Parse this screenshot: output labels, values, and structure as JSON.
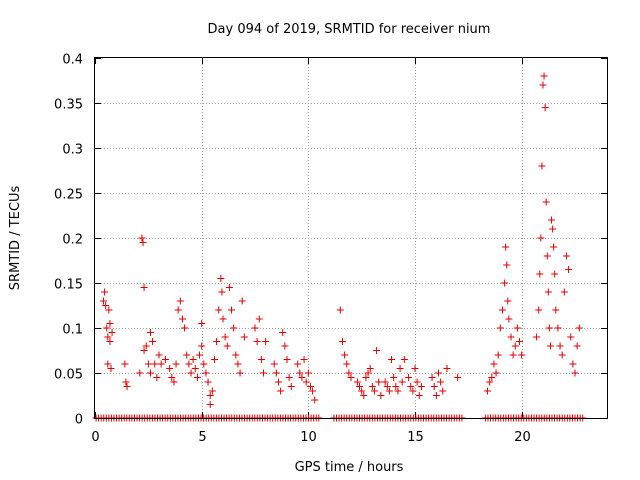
{
  "chart_data": {
    "type": "scatter",
    "title": "Day 094 of 2019, SRMTID for receiver nium",
    "xlabel": "GPS time / hours",
    "ylabel": "SRMTID / TECUs",
    "xlim": [
      0,
      24
    ],
    "ylim": [
      0,
      0.4
    ],
    "xticks": [
      0,
      5,
      10,
      15,
      20
    ],
    "xtick_labels": [
      "0",
      "5",
      "10",
      "15",
      "20"
    ],
    "yticks": [
      0,
      0.05,
      0.1,
      0.15,
      0.2,
      0.25,
      0.3,
      0.35,
      0.4
    ],
    "ytick_labels": [
      "0",
      "0.05",
      "0.1",
      "0.15",
      "0.2",
      "0.25",
      "0.3",
      "0.35",
      "0.4"
    ],
    "grid": true,
    "marker": "+",
    "color": "#e00000",
    "series": [
      {
        "name": "SRMTID",
        "points": [
          [
            0.4,
            0.13
          ],
          [
            0.45,
            0.14
          ],
          [
            0.5,
            0.125
          ],
          [
            0.55,
            0.1
          ],
          [
            0.6,
            0.09
          ],
          [
            0.6,
            0.06
          ],
          [
            0.65,
            0.12
          ],
          [
            0.7,
            0.105
          ],
          [
            0.7,
            0.085
          ],
          [
            0.75,
            0.055
          ],
          [
            0.8,
            0.095
          ],
          [
            1.4,
            0.06
          ],
          [
            1.45,
            0.04
          ],
          [
            1.5,
            0.035
          ],
          [
            2.1,
            0.05
          ],
          [
            2.2,
            0.2
          ],
          [
            2.25,
            0.195
          ],
          [
            2.3,
            0.145
          ],
          [
            2.3,
            0.075
          ],
          [
            2.4,
            0.08
          ],
          [
            2.5,
            0.06
          ],
          [
            2.6,
            0.095
          ],
          [
            2.7,
            0.085
          ],
          [
            2.8,
            0.06
          ],
          [
            2.6,
            0.05
          ],
          [
            2.9,
            0.045
          ],
          [
            3.0,
            0.07
          ],
          [
            3.1,
            0.06
          ],
          [
            3.3,
            0.065
          ],
          [
            3.5,
            0.055
          ],
          [
            3.6,
            0.045
          ],
          [
            3.7,
            0.04
          ],
          [
            3.8,
            0.06
          ],
          [
            3.9,
            0.12
          ],
          [
            4.0,
            0.13
          ],
          [
            4.1,
            0.11
          ],
          [
            4.2,
            0.1
          ],
          [
            4.3,
            0.07
          ],
          [
            4.4,
            0.06
          ],
          [
            4.5,
            0.05
          ],
          [
            4.6,
            0.065
          ],
          [
            4.7,
            0.055
          ],
          [
            4.8,
            0.045
          ],
          [
            4.9,
            0.07
          ],
          [
            5.0,
            0.08
          ],
          [
            5.0,
            0.105
          ],
          [
            5.1,
            0.06
          ],
          [
            5.2,
            0.05
          ],
          [
            5.3,
            0.04
          ],
          [
            5.4,
            0.015
          ],
          [
            5.4,
            0.025
          ],
          [
            5.5,
            0.03
          ],
          [
            5.6,
            0.065
          ],
          [
            5.7,
            0.085
          ],
          [
            5.8,
            0.12
          ],
          [
            5.9,
            0.155
          ],
          [
            5.95,
            0.14
          ],
          [
            6.0,
            0.11
          ],
          [
            6.1,
            0.09
          ],
          [
            6.2,
            0.08
          ],
          [
            6.3,
            0.145
          ],
          [
            6.4,
            0.12
          ],
          [
            6.5,
            0.1
          ],
          [
            6.6,
            0.07
          ],
          [
            6.7,
            0.06
          ],
          [
            6.8,
            0.05
          ],
          [
            6.9,
            0.13
          ],
          [
            7.0,
            0.09
          ],
          [
            7.5,
            0.1
          ],
          [
            7.6,
            0.085
          ],
          [
            7.7,
            0.11
          ],
          [
            7.8,
            0.065
          ],
          [
            7.9,
            0.05
          ],
          [
            8.0,
            0.085
          ],
          [
            8.4,
            0.06
          ],
          [
            8.5,
            0.05
          ],
          [
            8.6,
            0.04
          ],
          [
            8.7,
            0.03
          ],
          [
            8.8,
            0.095
          ],
          [
            8.9,
            0.08
          ],
          [
            9.0,
            0.065
          ],
          [
            9.1,
            0.045
          ],
          [
            9.2,
            0.035
          ],
          [
            9.5,
            0.06
          ],
          [
            9.6,
            0.05
          ],
          [
            9.7,
            0.045
          ],
          [
            9.8,
            0.065
          ],
          [
            9.9,
            0.04
          ],
          [
            10.0,
            0.05
          ],
          [
            10.1,
            0.035
          ],
          [
            10.2,
            0.03
          ],
          [
            10.3,
            0.02
          ],
          [
            11.5,
            0.12
          ],
          [
            11.6,
            0.085
          ],
          [
            11.7,
            0.07
          ],
          [
            11.8,
            0.06
          ],
          [
            11.9,
            0.05
          ],
          [
            12.0,
            0.045
          ],
          [
            12.3,
            0.04
          ],
          [
            12.4,
            0.035
          ],
          [
            12.5,
            0.03
          ],
          [
            12.6,
            0.025
          ],
          [
            12.7,
            0.045
          ],
          [
            12.8,
            0.05
          ],
          [
            12.9,
            0.055
          ],
          [
            13.0,
            0.035
          ],
          [
            13.1,
            0.03
          ],
          [
            13.2,
            0.075
          ],
          [
            13.3,
            0.04
          ],
          [
            13.4,
            0.025
          ],
          [
            13.6,
            0.04
          ],
          [
            13.7,
            0.035
          ],
          [
            13.8,
            0.03
          ],
          [
            13.9,
            0.065
          ],
          [
            14.0,
            0.045
          ],
          [
            14.1,
            0.035
          ],
          [
            14.2,
            0.03
          ],
          [
            14.3,
            0.055
          ],
          [
            14.4,
            0.04
          ],
          [
            14.5,
            0.065
          ],
          [
            14.7,
            0.045
          ],
          [
            14.8,
            0.035
          ],
          [
            14.9,
            0.03
          ],
          [
            15.0,
            0.055
          ],
          [
            15.1,
            0.04
          ],
          [
            15.2,
            0.025
          ],
          [
            15.3,
            0.035
          ],
          [
            15.8,
            0.045
          ],
          [
            15.9,
            0.035
          ],
          [
            16.0,
            0.025
          ],
          [
            16.1,
            0.05
          ],
          [
            16.2,
            0.04
          ],
          [
            16.3,
            0.03
          ],
          [
            16.5,
            0.055
          ],
          [
            17.0,
            0.045
          ],
          [
            18.4,
            0.03
          ],
          [
            18.5,
            0.04
          ],
          [
            18.6,
            0.045
          ],
          [
            18.7,
            0.06
          ],
          [
            18.8,
            0.05
          ],
          [
            18.9,
            0.07
          ],
          [
            19.0,
            0.1
          ],
          [
            19.1,
            0.12
          ],
          [
            19.2,
            0.15
          ],
          [
            19.25,
            0.19
          ],
          [
            19.3,
            0.17
          ],
          [
            19.35,
            0.13
          ],
          [
            19.4,
            0.11
          ],
          [
            19.5,
            0.09
          ],
          [
            19.6,
            0.07
          ],
          [
            19.7,
            0.08
          ],
          [
            19.8,
            0.1
          ],
          [
            19.9,
            0.085
          ],
          [
            20.0,
            0.07
          ],
          [
            20.7,
            0.09
          ],
          [
            20.8,
            0.12
          ],
          [
            20.85,
            0.16
          ],
          [
            20.9,
            0.2
          ],
          [
            20.95,
            0.28
          ],
          [
            21.0,
            0.37
          ],
          [
            21.05,
            0.38
          ],
          [
            21.1,
            0.345
          ],
          [
            21.15,
            0.24
          ],
          [
            21.2,
            0.18
          ],
          [
            21.25,
            0.14
          ],
          [
            21.3,
            0.1
          ],
          [
            21.35,
            0.08
          ],
          [
            21.4,
            0.22
          ],
          [
            21.45,
            0.21
          ],
          [
            21.5,
            0.19
          ],
          [
            21.55,
            0.16
          ],
          [
            21.6,
            0.12
          ],
          [
            21.7,
            0.1
          ],
          [
            21.8,
            0.08
          ],
          [
            21.9,
            0.07
          ],
          [
            22.0,
            0.14
          ],
          [
            22.1,
            0.18
          ],
          [
            22.2,
            0.165
          ],
          [
            22.3,
            0.09
          ],
          [
            22.4,
            0.06
          ],
          [
            22.5,
            0.05
          ],
          [
            22.6,
            0.08
          ],
          [
            22.7,
            0.1
          ]
        ]
      }
    ],
    "zero_band": {
      "y": 0,
      "segments": [
        [
          0.05,
          10.6
        ],
        [
          11.2,
          17.2
        ],
        [
          18.3,
          22.9
        ]
      ]
    }
  }
}
